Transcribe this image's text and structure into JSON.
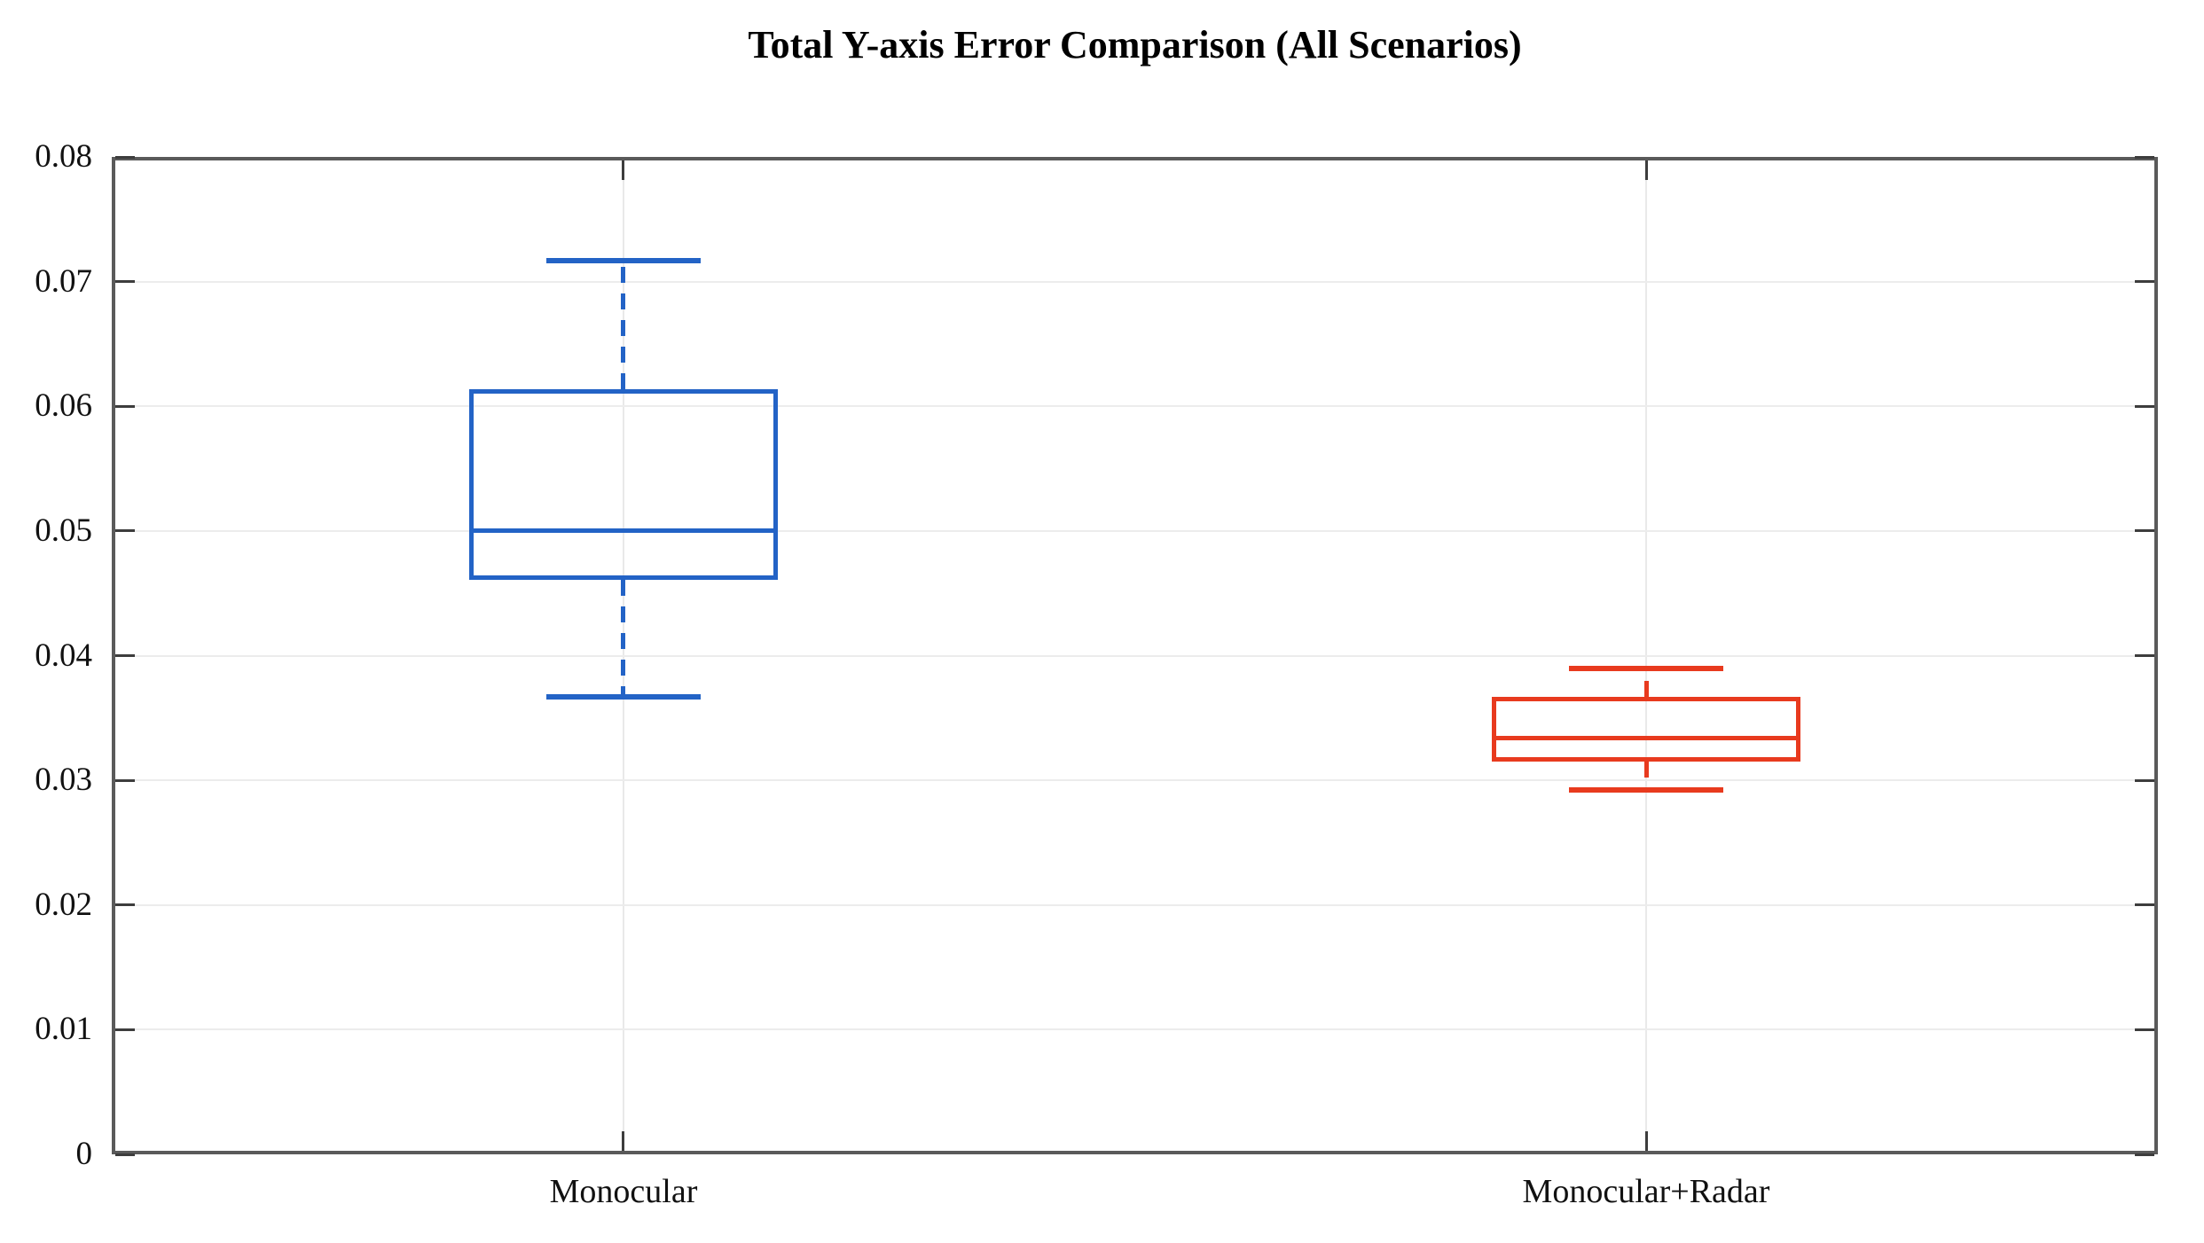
{
  "chart_data": {
    "type": "boxplot",
    "title": "Total Y-axis Error Comparison (All Scenarios)",
    "categories": [
      "Monocular",
      "Monocular+Radar"
    ],
    "series": [
      {
        "name": "Monocular",
        "color": "#2363C6",
        "whisker_low": 0.0367,
        "q1": 0.0461,
        "median": 0.05,
        "q3": 0.0614,
        "whisker_high": 0.0717
      },
      {
        "name": "Monocular+Radar",
        "color": "#E83A1E",
        "whisker_low": 0.0292,
        "q1": 0.0315,
        "median": 0.0334,
        "q3": 0.0367,
        "whisker_high": 0.039
      }
    ],
    "ylim": [
      0,
      0.08
    ],
    "ytick_step": 0.01,
    "ytick_labels": [
      "0",
      "0.01",
      "0.02",
      "0.03",
      "0.04",
      "0.05",
      "0.06",
      "0.07",
      "0.08"
    ],
    "xlabel": "",
    "ylabel": "",
    "grid": true,
    "legend": null,
    "axis_color": "#5a5a5a",
    "tick_color": "#3d3d3d",
    "grid_color": "#ececec",
    "background_color": "#ffffff",
    "whisker_style": "dashed"
  }
}
